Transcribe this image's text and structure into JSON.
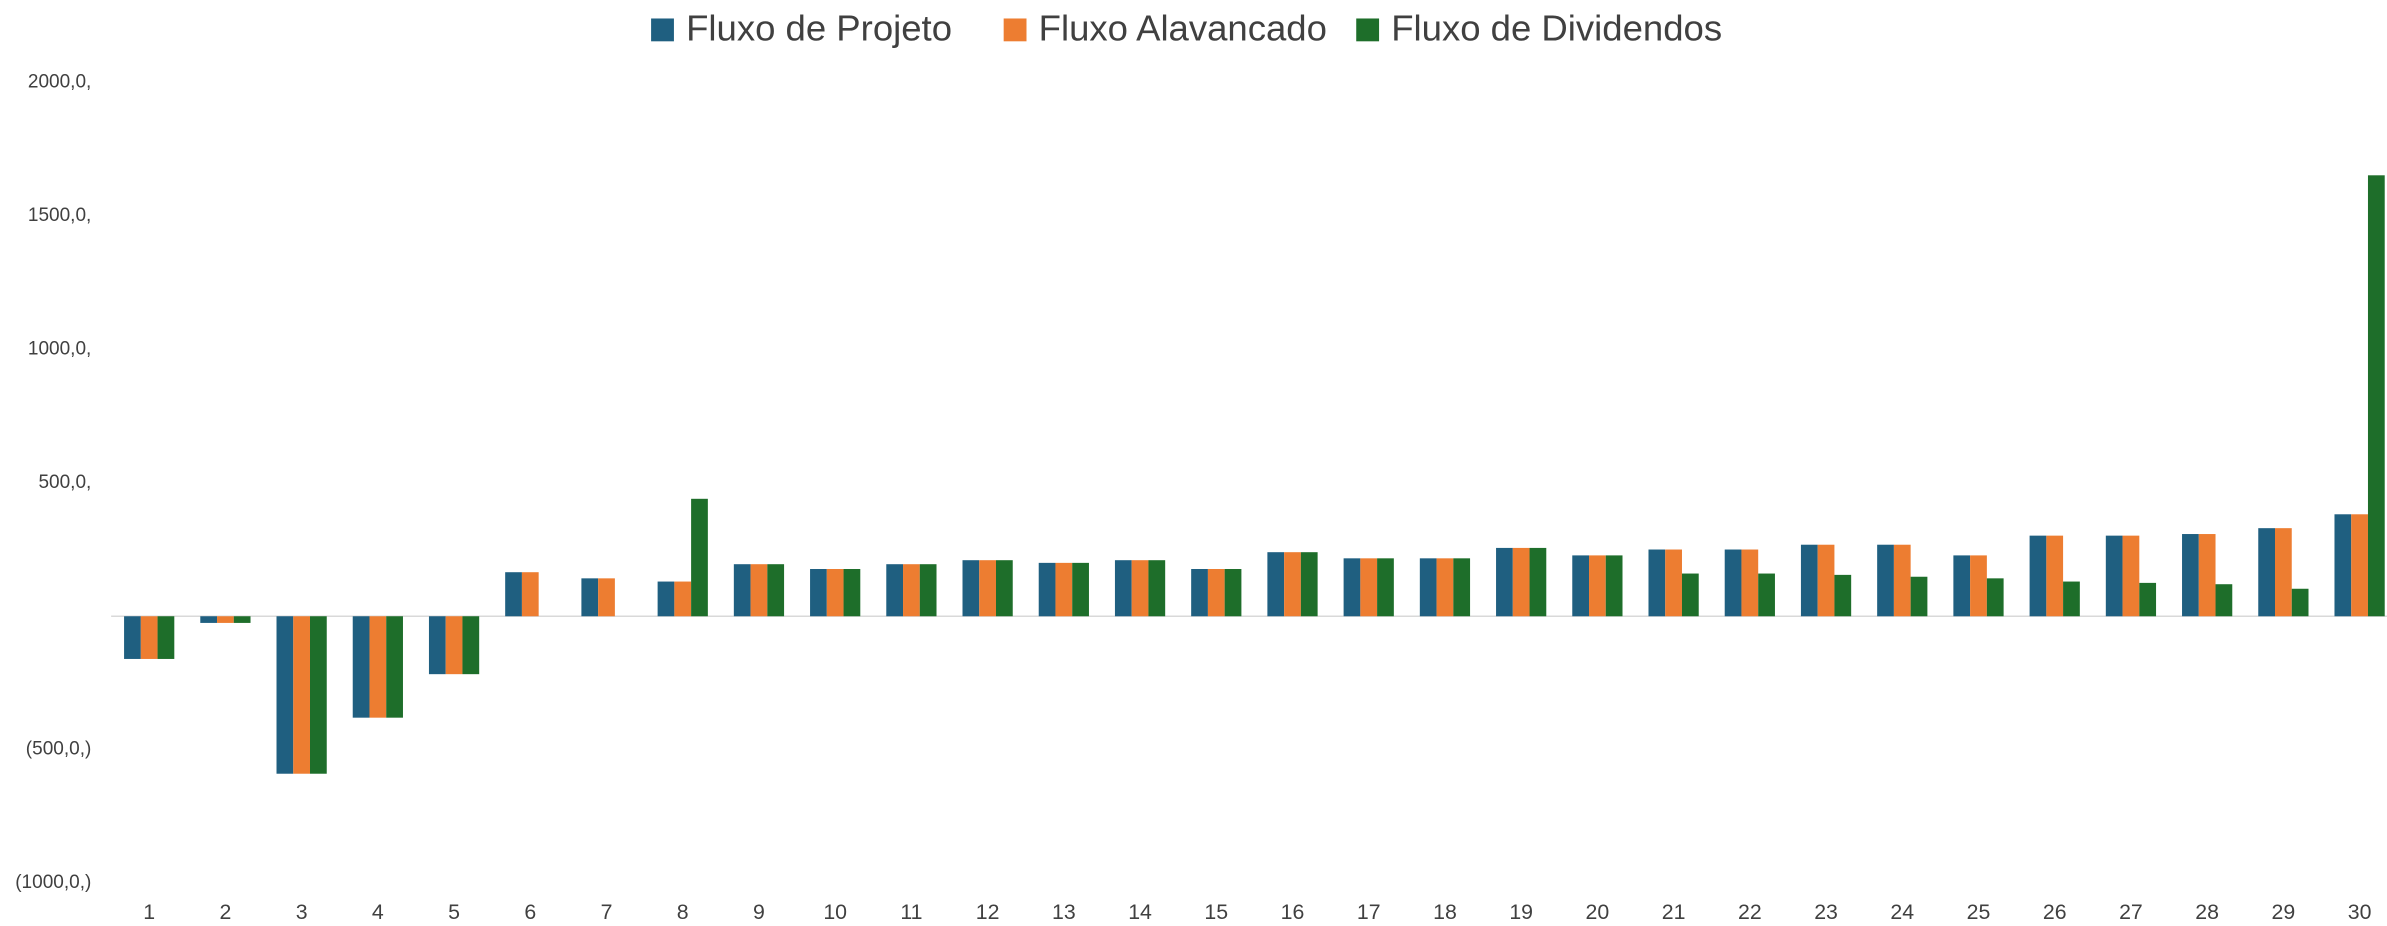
{
  "chart_data": {
    "type": "bar",
    "categories": [
      "1",
      "2",
      "3",
      "4",
      "5",
      "6",
      "7",
      "8",
      "9",
      "10",
      "11",
      "12",
      "13",
      "14",
      "15",
      "16",
      "17",
      "18",
      "19",
      "20",
      "21",
      "22",
      "23",
      "24",
      "25",
      "26",
      "27",
      "28",
      "29",
      "30"
    ],
    "series": [
      {
        "name": "Fluxo de Projeto",
        "color": "#1f5f80",
        "values": [
          -160,
          -25,
          -590,
          -380,
          -217,
          165,
          142,
          130,
          195,
          177,
          195,
          210,
          200,
          210,
          177,
          240,
          217,
          217,
          256,
          228,
          250,
          250,
          268,
          268,
          228,
          302,
          302,
          308,
          330,
          382
        ]
      },
      {
        "name": "Fluxo Alavancado",
        "color": "#ed7d31",
        "values": [
          -160,
          -25,
          -590,
          -380,
          -217,
          165,
          142,
          130,
          195,
          177,
          195,
          210,
          200,
          210,
          177,
          240,
          217,
          217,
          256,
          228,
          250,
          250,
          268,
          268,
          228,
          302,
          302,
          308,
          330,
          382
        ]
      },
      {
        "name": "Fluxo de Dividendos",
        "color": "#1e6e2a",
        "values": [
          -160,
          -25,
          -590,
          -380,
          -217,
          0,
          0,
          440,
          195,
          177,
          195,
          210,
          200,
          210,
          177,
          240,
          217,
          217,
          256,
          228,
          160,
          160,
          155,
          148,
          142,
          130,
          125,
          120,
          103,
          1652
        ]
      }
    ],
    "ylim": [
      -1000,
      2000
    ],
    "yticks": [
      {
        "value": 2000,
        "label": "2000,0,"
      },
      {
        "value": 1500,
        "label": "1500,0,"
      },
      {
        "value": 1000,
        "label": "1000,0,"
      },
      {
        "value": 500,
        "label": "500,0,"
      },
      {
        "value": -500,
        "label": "(500,0,)"
      },
      {
        "value": -1000,
        "label": "(1000,0,)"
      }
    ],
    "legend": "top"
  }
}
